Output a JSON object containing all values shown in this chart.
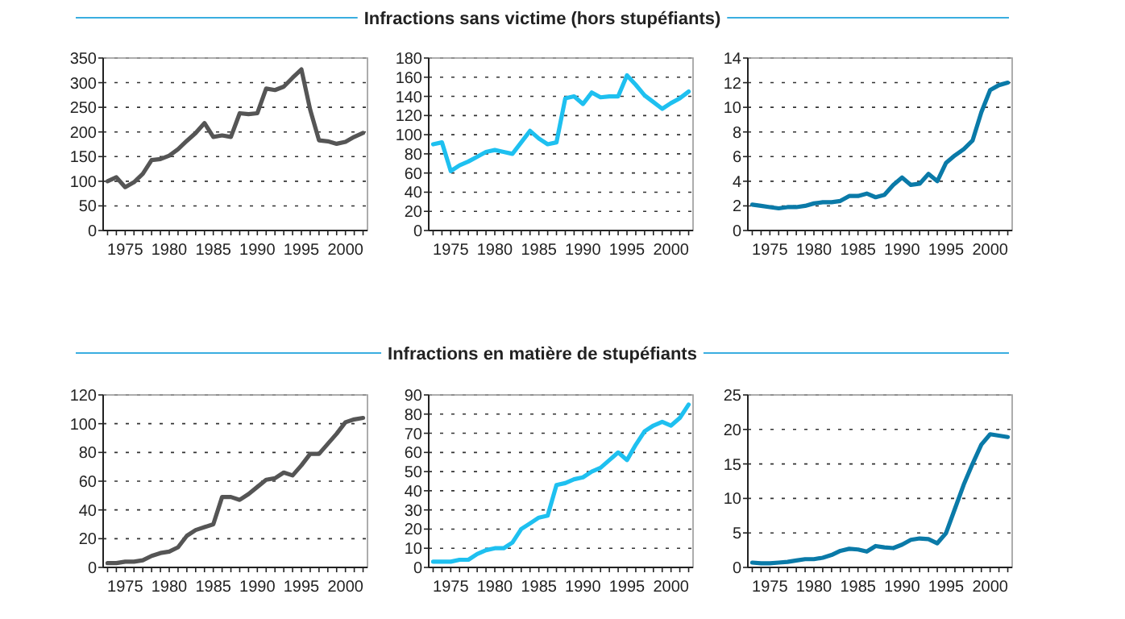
{
  "chart_data": [
    {
      "type": "line",
      "x": [
        1973,
        1974,
        1975,
        1976,
        1977,
        1978,
        1979,
        1980,
        1981,
        1982,
        1983,
        1984,
        1985,
        1986,
        1987,
        1988,
        1989,
        1990,
        1991,
        1992,
        1993,
        1994,
        1995,
        1996,
        1997,
        1998,
        1999,
        2000,
        2001,
        2002
      ],
      "series": [
        {
          "color": "#555555",
          "values": [
            100,
            108,
            88,
            98,
            115,
            143,
            145,
            152,
            165,
            182,
            198,
            218,
            190,
            193,
            190,
            238,
            236,
            238,
            288,
            285,
            292,
            310,
            327,
            245,
            183,
            181,
            176,
            180,
            190,
            198
          ]
        }
      ],
      "xlim": [
        1972.5,
        2002.5
      ],
      "xticks": [
        1975,
        1980,
        1985,
        1990,
        1995,
        2000
      ],
      "ylim": [
        0,
        350
      ],
      "yticks": [
        0,
        50,
        100,
        150,
        200,
        250,
        300,
        350
      ],
      "grid": "y"
    },
    {
      "type": "line",
      "x": [
        1973,
        1974,
        1975,
        1976,
        1977,
        1978,
        1979,
        1980,
        1981,
        1982,
        1983,
        1984,
        1985,
        1986,
        1987,
        1988,
        1989,
        1990,
        1991,
        1992,
        1993,
        1994,
        1995,
        1996,
        1997,
        1998,
        1999,
        2000,
        2001,
        2002
      ],
      "title": "Infractions sans victime (hors stupéfiants)",
      "series": [
        {
          "color": "#1ec0f0",
          "values": [
            90,
            92,
            62,
            68,
            72,
            77,
            82,
            84,
            82,
            80,
            92,
            104,
            96,
            90,
            92,
            138,
            140,
            132,
            144,
            139,
            140,
            140,
            162,
            152,
            141,
            134,
            127,
            133,
            138,
            145
          ]
        }
      ],
      "xlim": [
        1972.5,
        2002.5
      ],
      "xticks": [
        1975,
        1980,
        1985,
        1990,
        1995,
        2000
      ],
      "ylim": [
        0,
        180
      ],
      "yticks": [
        0,
        20,
        40,
        60,
        80,
        100,
        120,
        140,
        160,
        180
      ],
      "grid": "y"
    },
    {
      "type": "line",
      "x": [
        1973,
        1974,
        1975,
        1976,
        1977,
        1978,
        1979,
        1980,
        1981,
        1982,
        1983,
        1984,
        1985,
        1986,
        1987,
        1988,
        1989,
        1990,
        1991,
        1992,
        1993,
        1994,
        1995,
        1996,
        1997,
        1998,
        1999,
        2000,
        2001,
        2002
      ],
      "series": [
        {
          "color": "#0a7aa8",
          "values": [
            2.1,
            2.0,
            1.9,
            1.8,
            1.9,
            1.9,
            2.0,
            2.2,
            2.3,
            2.3,
            2.4,
            2.8,
            2.8,
            3.0,
            2.7,
            2.9,
            3.7,
            4.3,
            3.7,
            3.8,
            4.6,
            4.0,
            5.5,
            6.1,
            6.6,
            7.3,
            9.6,
            11.4,
            11.8,
            12.0
          ]
        }
      ],
      "xlim": [
        1972.5,
        2002.5
      ],
      "xticks": [
        1975,
        1980,
        1985,
        1990,
        1995,
        2000
      ],
      "ylim": [
        0,
        14
      ],
      "yticks": [
        0,
        2,
        4,
        6,
        8,
        10,
        12,
        14
      ],
      "grid": "y"
    },
    {
      "type": "line",
      "x": [
        1973,
        1974,
        1975,
        1976,
        1977,
        1978,
        1979,
        1980,
        1981,
        1982,
        1983,
        1984,
        1985,
        1986,
        1987,
        1988,
        1989,
        1990,
        1991,
        1992,
        1993,
        1994,
        1995,
        1996,
        1997,
        1998,
        1999,
        2000,
        2001,
        2002
      ],
      "series": [
        {
          "color": "#555555",
          "values": [
            3,
            3,
            4,
            4,
            5,
            8,
            10,
            11,
            14,
            22,
            26,
            28,
            30,
            49,
            49,
            47,
            51,
            56,
            61,
            62,
            66,
            64,
            71,
            79,
            79,
            86,
            93,
            101,
            103,
            104
          ]
        }
      ],
      "xlim": [
        1972.5,
        2002.5
      ],
      "xticks": [
        1975,
        1980,
        1985,
        1990,
        1995,
        2000
      ],
      "ylim": [
        0,
        120
      ],
      "yticks": [
        0,
        20,
        40,
        60,
        80,
        100,
        120
      ],
      "grid": "y"
    },
    {
      "type": "line",
      "x": [
        1973,
        1974,
        1975,
        1976,
        1977,
        1978,
        1979,
        1980,
        1981,
        1982,
        1983,
        1984,
        1985,
        1986,
        1987,
        1988,
        1989,
        1990,
        1991,
        1992,
        1993,
        1994,
        1995,
        1996,
        1997,
        1998,
        1999,
        2000,
        2001,
        2002
      ],
      "title": "Infractions en matière de stupéfiants",
      "series": [
        {
          "color": "#1ec0f0",
          "values": [
            3,
            3,
            3,
            4,
            4,
            7,
            9,
            10,
            10,
            13,
            20,
            23,
            26,
            27,
            43,
            44,
            46,
            47,
            50,
            52,
            56,
            60,
            56,
            64,
            71,
            74,
            76,
            74,
            78,
            85
          ]
        }
      ],
      "xlim": [
        1972.5,
        2002.5
      ],
      "xticks": [
        1975,
        1980,
        1985,
        1990,
        1995,
        2000
      ],
      "ylim": [
        0,
        90
      ],
      "yticks": [
        0,
        10,
        20,
        30,
        40,
        50,
        60,
        70,
        80,
        90
      ],
      "grid": "y"
    },
    {
      "type": "line",
      "x": [
        1973,
        1974,
        1975,
        1976,
        1977,
        1978,
        1979,
        1980,
        1981,
        1982,
        1983,
        1984,
        1985,
        1986,
        1987,
        1988,
        1989,
        1990,
        1991,
        1992,
        1993,
        1994,
        1995,
        1996,
        1997,
        1998,
        1999,
        2000,
        2001,
        2002
      ],
      "series": [
        {
          "color": "#0a7aa8",
          "values": [
            0.7,
            0.6,
            0.6,
            0.7,
            0.8,
            1.0,
            1.2,
            1.2,
            1.4,
            1.8,
            2.4,
            2.7,
            2.6,
            2.3,
            3.1,
            2.9,
            2.8,
            3.3,
            4.0,
            4.2,
            4.1,
            3.5,
            5.0,
            8.5,
            12.0,
            15.0,
            17.8,
            19.3,
            19.1,
            18.9
          ]
        }
      ],
      "xlim": [
        1972.5,
        2002.5
      ],
      "xticks": [
        1975,
        1980,
        1985,
        1990,
        1995,
        2000
      ],
      "ylim": [
        0,
        25
      ],
      "yticks": [
        0,
        5,
        10,
        15,
        20,
        25
      ],
      "grid": "y"
    }
  ]
}
